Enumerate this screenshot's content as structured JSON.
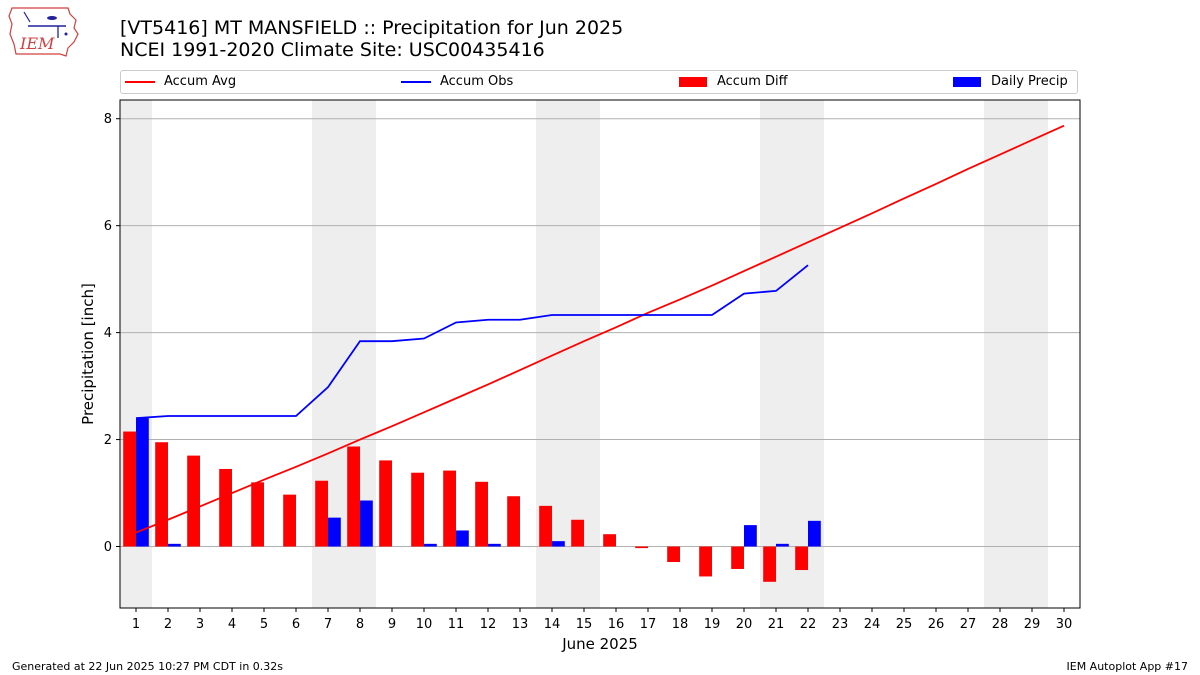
{
  "header": {
    "title_line1": "[VT5416] MT MANSFIELD :: Precipitation for Jun 2025",
    "title_line2": "NCEI 1991-2020 Climate Site: USC00435416",
    "logo_text": "IEM"
  },
  "legend": [
    {
      "label": "Accum Avg",
      "kind": "line",
      "color": "#ff0000"
    },
    {
      "label": "Accum Obs",
      "kind": "line",
      "color": "#0000ff"
    },
    {
      "label": "Accum Diff",
      "kind": "bar",
      "color": "#ff0000"
    },
    {
      "label": "Daily Precip",
      "kind": "bar",
      "color": "#0000ff"
    }
  ],
  "footer": {
    "generated": "Generated at 22 Jun 2025 10:27 PM CDT in 0.32s",
    "app": "IEM Autoplot App #17"
  },
  "chart_data": {
    "type": "bar",
    "xlabel": "June 2025",
    "ylabel": "Precipitation [inch]",
    "xlim": [
      0.5,
      30.5
    ],
    "ylim": [
      -1.15,
      8.35
    ],
    "yticks": [
      0,
      2,
      4,
      6,
      8
    ],
    "grid": "horizontal",
    "legend_position": "top",
    "weekend_shading": [
      [
        0.5,
        1.5
      ],
      [
        6.5,
        8.5
      ],
      [
        13.5,
        15.5
      ],
      [
        20.5,
        22.5
      ],
      [
        27.5,
        29.5
      ]
    ],
    "days": [
      1,
      2,
      3,
      4,
      5,
      6,
      7,
      8,
      9,
      10,
      11,
      12,
      13,
      14,
      15,
      16,
      17,
      18,
      19,
      20,
      21,
      22,
      23,
      24,
      25,
      26,
      27,
      28,
      29,
      30
    ],
    "series": [
      {
        "name": "Accum Avg",
        "type": "line",
        "color": "#ff0000",
        "x": [
          1,
          2,
          3,
          4,
          5,
          6,
          7,
          8,
          9,
          10,
          11,
          12,
          13,
          14,
          15,
          16,
          17,
          18,
          19,
          20,
          21,
          22,
          23,
          24,
          25,
          26,
          27,
          28,
          29,
          30
        ],
        "values": [
          0.26,
          0.5,
          0.75,
          1.0,
          1.25,
          1.49,
          1.74,
          2.0,
          2.25,
          2.51,
          2.77,
          3.03,
          3.3,
          3.57,
          3.84,
          4.1,
          4.37,
          4.62,
          4.88,
          5.15,
          5.42,
          5.69,
          5.96,
          6.23,
          6.51,
          6.78,
          7.06,
          7.33,
          7.6,
          7.87
        ]
      },
      {
        "name": "Accum Obs",
        "type": "line",
        "color": "#0000ff",
        "x": [
          1,
          2,
          3,
          4,
          5,
          6,
          7,
          8,
          9,
          10,
          11,
          12,
          13,
          14,
          15,
          16,
          17,
          18,
          19,
          20,
          21,
          22
        ],
        "values": [
          2.4,
          2.44,
          2.44,
          2.44,
          2.44,
          2.44,
          2.98,
          3.84,
          3.84,
          3.89,
          4.19,
          4.24,
          4.24,
          4.33,
          4.33,
          4.33,
          4.33,
          4.33,
          4.33,
          4.73,
          4.78,
          5.26
        ]
      },
      {
        "name": "Accum Diff",
        "type": "bar",
        "color": "#ff0000",
        "x": [
          1,
          2,
          3,
          4,
          5,
          6,
          7,
          8,
          9,
          10,
          11,
          12,
          13,
          14,
          15,
          16,
          17,
          18,
          19,
          20,
          21,
          22
        ],
        "values": [
          2.15,
          1.95,
          1.7,
          1.45,
          1.2,
          0.97,
          1.23,
          1.87,
          1.61,
          1.38,
          1.42,
          1.21,
          0.94,
          0.76,
          0.5,
          0.23,
          -0.03,
          -0.29,
          -0.56,
          -0.42,
          -0.66,
          -0.44
        ]
      },
      {
        "name": "Daily Precip",
        "type": "bar",
        "color": "#0000ff",
        "x": [
          1,
          2,
          3,
          4,
          5,
          6,
          7,
          8,
          9,
          10,
          11,
          12,
          13,
          14,
          15,
          16,
          17,
          18,
          19,
          20,
          21,
          22
        ],
        "values": [
          2.4,
          0.05,
          0,
          0,
          0,
          0,
          0.54,
          0.86,
          0,
          0.05,
          0.3,
          0.05,
          0,
          0.1,
          0,
          0,
          0,
          0,
          0,
          0.4,
          0.05,
          0.48
        ]
      }
    ]
  }
}
